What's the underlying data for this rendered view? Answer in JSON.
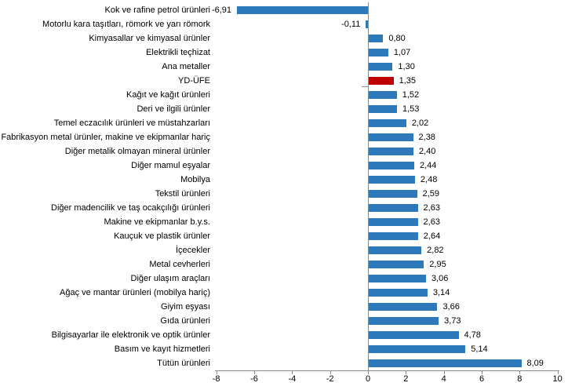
{
  "chart_data": {
    "type": "bar",
    "orientation": "horizontal",
    "title": "",
    "xlabel": "",
    "ylabel": "",
    "xlim": [
      -8,
      10
    ],
    "x_ticks": [
      -8,
      -6,
      -4,
      -2,
      0,
      2,
      4,
      6,
      8,
      10
    ],
    "x_tick_labels": [
      "-8",
      "-6",
      "-4",
      "-2",
      "0",
      "2",
      "4",
      "6",
      "8",
      "10"
    ],
    "grid": false,
    "legend": "none",
    "bar_color": "#2e79b9",
    "highlight_color": "#c00000",
    "highlight_category": "YD-ÜFE",
    "axis_color": "#8c8c8c",
    "categories": [
      "Kok ve rafine petrol ürünleri",
      "Motorlu kara taşıtları, römork ve yarı römork",
      "Kimyasallar ve kimyasal ürünler",
      "Elektrikli teçhizat",
      "Ana metaller",
      "YD-ÜFE",
      "Kağıt ve kağıt ürünleri",
      "Deri ve ilgili ürünler",
      "Temel eczacılık ürünleri ve müstahzarları",
      "Fabrikasyon metal ürünler, makine ve ekipmanlar hariç",
      "Diğer metalik olmayan mineral ürünler",
      "Diğer mamul eşyalar",
      "Mobilya",
      "Tekstil ürünleri",
      "Diğer madencilik ve taş ocakçılığı ürünleri",
      "Makine ve ekipmanlar b.y.s.",
      "Kauçuk ve plastik ürünler",
      "İçecekler",
      "Metal cevherleri",
      "Diğer ulaşım araçları",
      "Ağaç ve mantar ürünleri (mobilya hariç)",
      "Giyim eşyası",
      "Gıda ürünleri",
      "Bilgisayarlar ile elektronik ve optik ürünler",
      "Basım ve kayıt hizmetleri",
      "Tütün ürünleri"
    ],
    "values": [
      -6.91,
      -0.11,
      0.8,
      1.07,
      1.3,
      1.35,
      1.52,
      1.53,
      2.02,
      2.38,
      2.4,
      2.44,
      2.48,
      2.59,
      2.63,
      2.63,
      2.64,
      2.82,
      2.95,
      3.06,
      3.14,
      3.66,
      3.73,
      4.78,
      5.14,
      8.09
    ],
    "value_labels": [
      "-6,91",
      "-0,11",
      "0,80",
      "1,07",
      "1,30",
      "1,35",
      "1,52",
      "1,53",
      "2,02",
      "2,38",
      "2,40",
      "2,44",
      "2,48",
      "2,59",
      "2,63",
      "2,63",
      "2,64",
      "2,82",
      "2,95",
      "3,06",
      "3,14",
      "3,66",
      "3,73",
      "4,78",
      "5,14",
      "8,09"
    ]
  }
}
